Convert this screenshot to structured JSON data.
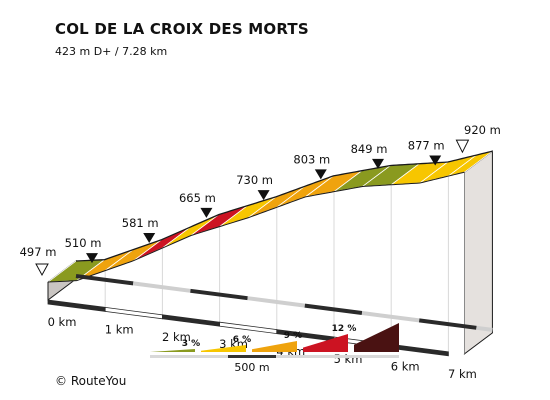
{
  "chart_data": {
    "type": "area",
    "title": "COL DE LA CROIX DES MORTS",
    "subtitle": "423 m D+ / 7.28 km",
    "x_unit": "km",
    "x_ticks": [
      0,
      1,
      2,
      3,
      4,
      5,
      6,
      7
    ],
    "x_tick_labels": [
      "0 km",
      "1 km",
      "2 km",
      "3 km",
      "4 km",
      "5 km",
      "6 km",
      "7 km"
    ],
    "points": [
      {
        "km": 0,
        "elev": 497,
        "label": "497 m",
        "marker": "start"
      },
      {
        "km": 0.5,
        "elev": 510,
        "label": "510 m",
        "marker": "km"
      },
      {
        "km": 1.5,
        "elev": 581,
        "label": "581 m",
        "marker": "km"
      },
      {
        "km": 2.5,
        "elev": 665,
        "label": "665 m",
        "marker": "km"
      },
      {
        "km": 3.5,
        "elev": 730,
        "label": "730 m",
        "marker": "km"
      },
      {
        "km": 4.5,
        "elev": 803,
        "label": "803 m",
        "marker": "km"
      },
      {
        "km": 5.5,
        "elev": 849,
        "label": "849 m",
        "marker": "km"
      },
      {
        "km": 6.5,
        "elev": 877,
        "label": "877 m",
        "marker": "km"
      },
      {
        "km": 7.28,
        "elev": 920,
        "label": "920 m",
        "marker": "end"
      }
    ],
    "segments": [
      {
        "from_km": 0,
        "to_km": 0.5,
        "color": "olive"
      },
      {
        "from_km": 0.5,
        "to_km": 1.0,
        "color": "orange"
      },
      {
        "from_km": 1.0,
        "to_km": 1.5,
        "color": "orange"
      },
      {
        "from_km": 1.5,
        "to_km": 2.0,
        "color": "red"
      },
      {
        "from_km": 2.0,
        "to_km": 2.5,
        "color": "yellow"
      },
      {
        "from_km": 2.5,
        "to_km": 3.0,
        "color": "red"
      },
      {
        "from_km": 3.0,
        "to_km": 3.5,
        "color": "yellow"
      },
      {
        "from_km": 3.5,
        "to_km": 4.0,
        "color": "orange"
      },
      {
        "from_km": 4.0,
        "to_km": 4.5,
        "color": "orange"
      },
      {
        "from_km": 4.5,
        "to_km": 5.0,
        "color": "orange"
      },
      {
        "from_km": 5.0,
        "to_km": 5.5,
        "color": "olive"
      },
      {
        "from_km": 5.5,
        "to_km": 6.0,
        "color": "olive"
      },
      {
        "from_km": 6.0,
        "to_km": 6.5,
        "color": "yellow"
      },
      {
        "from_km": 6.5,
        "to_km": 7.0,
        "color": "yellow"
      },
      {
        "from_km": 7.0,
        "to_km": 7.28,
        "color": "yellow"
      }
    ],
    "legend": {
      "placement": "bottom",
      "items": [
        {
          "label": "3 %",
          "color": "olive"
        },
        {
          "label": "6 %",
          "color": "yellow"
        },
        {
          "label": "9 %",
          "color": "orange"
        },
        {
          "label": "12 %",
          "color": "red"
        },
        {
          "label": "",
          "color": "darkred"
        }
      ],
      "scale_label": "500 m"
    }
  },
  "colors": {
    "olive": "#8a9a1f",
    "yellow": "#f7c600",
    "orange": "#efa30d",
    "red": "#cc1322",
    "darkred": "#4a1212",
    "top_border": "#1a1a1a",
    "front_face": "#ffffff",
    "side_face": "#e5e1de",
    "base_dark": "#2a2a2a",
    "bar_gray": "#d9d9d9"
  },
  "credit": "© RouteYou"
}
